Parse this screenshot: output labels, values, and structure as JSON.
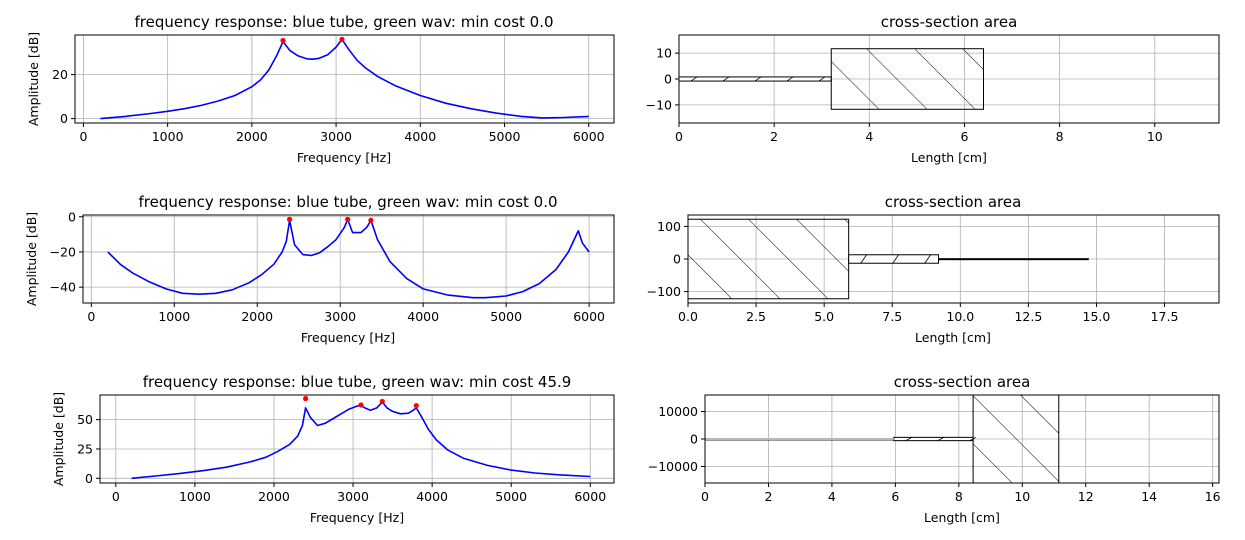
{
  "chart_data": [
    {
      "type": "line",
      "title": "frequency response: blue tube, green wav: min cost 0.0",
      "xlabel": "Frequency [Hz]",
      "ylabel": "Amplitude [dB]",
      "xlim": [
        -100,
        6300
      ],
      "ylim": [
        -2,
        38
      ],
      "xticks": [
        0,
        1000,
        2000,
        3000,
        4000,
        5000,
        6000
      ],
      "yticks": [
        0,
        20
      ],
      "grid": true,
      "series": [
        {
          "color": "#0000ff",
          "x": [
            200,
            500,
            800,
            1000,
            1200,
            1400,
            1600,
            1800,
            2000,
            2100,
            2200,
            2300,
            2370,
            2450,
            2550,
            2650,
            2720,
            2800,
            2900,
            3000,
            3070,
            3150,
            3250,
            3350,
            3500,
            3700,
            4000,
            4300,
            4600,
            4900,
            5200,
            5450,
            5700,
            6000
          ],
          "y": [
            0,
            1,
            2.3,
            3.3,
            4.5,
            6,
            8,
            10.5,
            14.5,
            17.5,
            22,
            29,
            35,
            31,
            28.5,
            27.2,
            27,
            27.4,
            29,
            32.5,
            36,
            31.5,
            26.5,
            23,
            19,
            15,
            10.5,
            7,
            4.5,
            2.5,
            1,
            0.3,
            0.5,
            1
          ]
        }
      ],
      "markers": {
        "color": "#ff0000",
        "x": [
          2370,
          3070
        ],
        "y": [
          35.5,
          36
        ]
      }
    },
    {
      "type": "area",
      "title": "cross-section area",
      "xlabel": "Length [cm]",
      "xlim": [
        0,
        11.35
      ],
      "ylim": [
        -17,
        17
      ],
      "xticks": [
        0,
        2,
        4,
        6,
        8,
        10
      ],
      "yticks": [
        10,
        0,
        -10
      ],
      "grid": true,
      "segments": [
        {
          "x0": 0,
          "x1": 3.2,
          "half_height": 0.8
        },
        {
          "x0": 3.2,
          "x1": 6.4,
          "half_height": 11.7
        }
      ]
    },
    {
      "type": "line",
      "title": "frequency response: blue tube, green wav: min cost 0.0",
      "xlabel": "Frequency [Hz]",
      "ylabel": "Amplitude [dB]",
      "xlim": [
        -100,
        6300
      ],
      "ylim": [
        -49,
        1
      ],
      "xticks": [
        0,
        1000,
        2000,
        3000,
        4000,
        5000,
        6000
      ],
      "yticks": [
        0,
        -20,
        -40
      ],
      "grid": true,
      "series": [
        {
          "color": "#0000ff",
          "x": [
            200,
            350,
            500,
            700,
            900,
            1100,
            1300,
            1500,
            1700,
            1900,
            2050,
            2200,
            2300,
            2350,
            2390,
            2450,
            2550,
            2650,
            2750,
            2850,
            2950,
            3050,
            3090,
            3150,
            3250,
            3320,
            3370,
            3450,
            3600,
            3800,
            4000,
            4300,
            4600,
            4750,
            5000,
            5200,
            5400,
            5600,
            5750,
            5830,
            5870,
            5920,
            6000
          ],
          "y": [
            -20,
            -27,
            -32,
            -37,
            -41,
            -43.5,
            -44,
            -43.5,
            -41.5,
            -37.5,
            -33,
            -27,
            -20,
            -14,
            -2,
            -16,
            -21.5,
            -22,
            -20.5,
            -17,
            -13,
            -6,
            -1.5,
            -9,
            -9,
            -6,
            -2,
            -13,
            -25.5,
            -35,
            -41,
            -44.5,
            -46,
            -46,
            -45,
            -42.5,
            -38,
            -30,
            -20,
            -12,
            -8,
            -15,
            -20
          ]
        }
      ],
      "markers": {
        "color": "#ff0000",
        "x": [
          2390,
          3090,
          3370
        ],
        "y": [
          -1.5,
          -1.5,
          -2
        ]
      }
    },
    {
      "type": "area",
      "title": "cross-section area",
      "xlabel": "Length [cm]",
      "xlim": [
        0,
        19.5
      ],
      "ylim": [
        -135,
        135
      ],
      "xticks": [
        0.0,
        2.5,
        5.0,
        7.5,
        10.0,
        12.5,
        15.0,
        17.5
      ],
      "yticks": [
        100,
        0,
        -100
      ],
      "grid": true,
      "segments": [
        {
          "x0": 0,
          "x1": 5.9,
          "half_height": 122
        },
        {
          "x0": 5.9,
          "x1": 9.2,
          "half_height": 13
        },
        {
          "x0": 9.2,
          "x1": 14.7,
          "half_height": 1
        }
      ]
    },
    {
      "type": "line",
      "title": "frequency response: blue tube, green wav: min cost 45.9",
      "xlabel": "Frequency [Hz]",
      "ylabel": "Amplitude [dB]",
      "xlim": [
        -200,
        6300
      ],
      "ylim": [
        -4,
        71
      ],
      "xticks": [
        0,
        1000,
        2000,
        3000,
        4000,
        5000,
        6000
      ],
      "yticks": [
        0,
        25,
        50
      ],
      "grid": true,
      "series": [
        {
          "color": "#0000ff",
          "x": [
            200,
            500,
            800,
            1100,
            1400,
            1700,
            1900,
            2050,
            2200,
            2300,
            2360,
            2400,
            2460,
            2550,
            2650,
            2750,
            2850,
            2950,
            3050,
            3100,
            3150,
            3220,
            3300,
            3370,
            3430,
            3500,
            3600,
            3700,
            3760,
            3800,
            3870,
            3950,
            4050,
            4200,
            4400,
            4700,
            5000,
            5300,
            5600,
            6000
          ],
          "y": [
            0,
            2,
            4,
            6.5,
            9.5,
            14,
            18,
            23,
            29,
            36,
            45,
            60,
            52,
            45,
            47,
            51,
            55,
            59,
            61.5,
            62,
            60,
            58,
            60,
            65,
            60,
            57,
            55,
            55.5,
            58,
            60,
            52,
            42,
            33,
            24,
            17,
            11,
            7,
            4.5,
            3,
            1.5
          ]
        }
      ],
      "markers": {
        "color": "#ff0000",
        "x": [
          2400,
          3100,
          3370,
          3800
        ],
        "y": [
          68,
          62.5,
          65.5,
          62
        ]
      }
    },
    {
      "type": "area",
      "title": "cross-section area",
      "xlabel": "Length [cm]",
      "xlim": [
        0,
        16.2
      ],
      "ylim": [
        -16000,
        16000
      ],
      "xticks": [
        0,
        2,
        4,
        6,
        8,
        10,
        12,
        14,
        16
      ],
      "yticks": [
        10000,
        0,
        -10000
      ],
      "grid": true,
      "segments": [
        {
          "x0": 0,
          "x1": 5.95,
          "half_height": 35
        },
        {
          "x0": 5.95,
          "x1": 8.45,
          "half_height": 600
        },
        {
          "x0": 8.45,
          "x1": 11.15,
          "half_height": 17000
        }
      ]
    }
  ]
}
